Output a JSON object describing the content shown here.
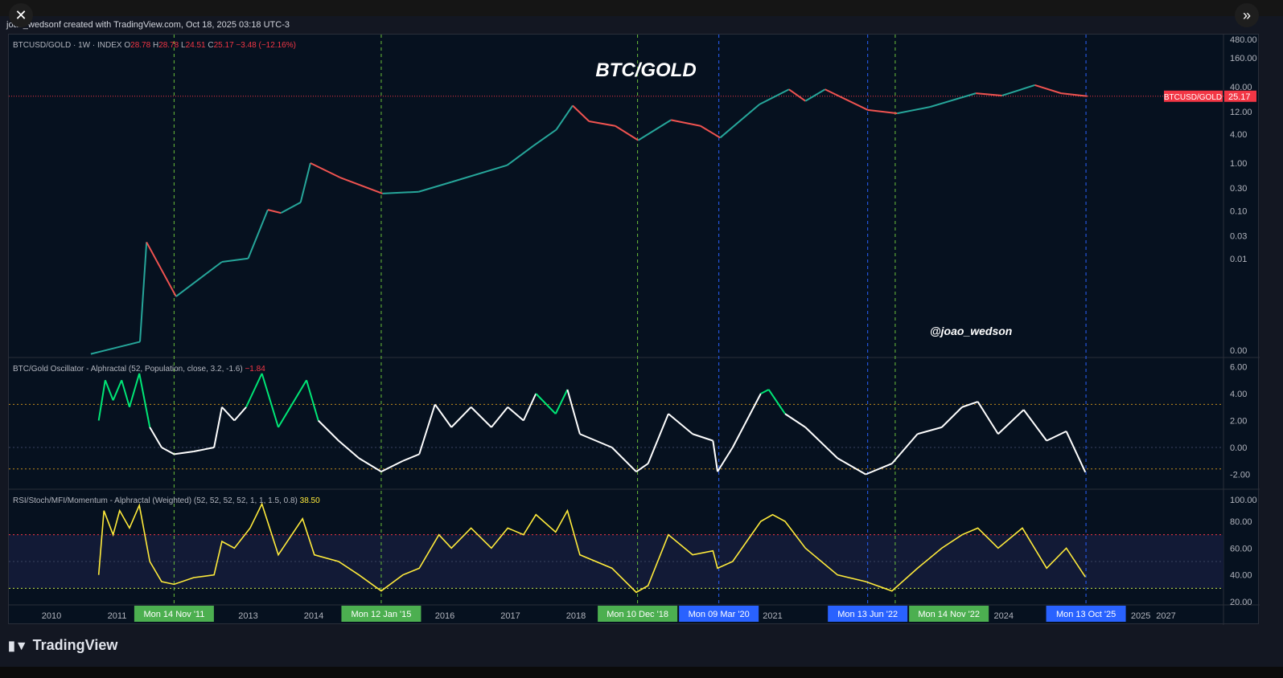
{
  "credit": "joao_wedsonf created with TradingView.com, Oct 18, 2025 03:18 UTC-3",
  "brand": "TradingView",
  "buttons": {
    "close": "close-icon",
    "expand": "chevrons-right-icon"
  },
  "colors": {
    "up": "#26a69a",
    "down": "#ef5350",
    "accent_red": "#f23645",
    "osc_line": "#ffffff",
    "osc_high": "#00e676",
    "osc_low": "#ff3b3b",
    "rsi_line": "#ffeb3b",
    "green_marker": "#4caf50",
    "blue_marker": "#2962ff"
  },
  "legend": {
    "main": {
      "symbol": "BTCUSD/GOLD · 1W · INDEX",
      "o_label": "O",
      "o": "28.78",
      "h_label": "H",
      "h": "28.78",
      "l_label": "L",
      "l": "24.51",
      "c_label": "C",
      "c": "25.17",
      "change": "−3.48 (−12.16%)"
    },
    "osc": {
      "name": "BTC/Gold Oscillator - Alphractal (52, Population, close, 3.2, -1.6)",
      "value": "−1.84"
    },
    "rsi": {
      "name": "RSI/Stoch/MFI/Momentum - Alphractal (Weighted) (52, 52, 52, 52, 1, 1, 1.5, 0.8)",
      "value": "38.50"
    }
  },
  "annotations": {
    "title": "BTC/GOLD",
    "handle": "@joao_wedson"
  },
  "price_label": {
    "name": "BTCUSD/GOLD",
    "value": "25.17"
  },
  "chart_data": [
    {
      "type": "line",
      "name": "BTCUSD/GOLD",
      "scale": "log",
      "y_ticks": [
        "480.00",
        "160.00",
        "40.00",
        "12.00",
        "4.00",
        "1.00",
        "0.30",
        "0.10",
        "0.03",
        "0.01",
        "0.00"
      ],
      "points": [
        [
          2010.6,
          0.0001
        ],
        [
          2011.35,
          0.00018
        ],
        [
          2011.45,
          0.022
        ],
        [
          2011.9,
          0.0016
        ],
        [
          2012.6,
          0.0085
        ],
        [
          2013.0,
          0.01
        ],
        [
          2013.3,
          0.105
        ],
        [
          2013.5,
          0.09
        ],
        [
          2013.8,
          0.15
        ],
        [
          2013.95,
          1.0
        ],
        [
          2014.4,
          0.5
        ],
        [
          2015.05,
          0.23
        ],
        [
          2015.6,
          0.25
        ],
        [
          2016.1,
          0.4
        ],
        [
          2016.95,
          0.9
        ],
        [
          2017.35,
          2.3
        ],
        [
          2017.7,
          5
        ],
        [
          2017.95,
          16
        ],
        [
          2018.2,
          7.5
        ],
        [
          2018.6,
          6
        ],
        [
          2018.95,
          3
        ],
        [
          2019.45,
          8
        ],
        [
          2019.9,
          6
        ],
        [
          2020.2,
          3.4
        ],
        [
          2020.8,
          17
        ],
        [
          2021.25,
          35
        ],
        [
          2021.5,
          20
        ],
        [
          2021.8,
          35
        ],
        [
          2022.45,
          13
        ],
        [
          2022.9,
          11
        ],
        [
          2023.4,
          15
        ],
        [
          2024.1,
          29
        ],
        [
          2024.5,
          26
        ],
        [
          2025.0,
          43
        ],
        [
          2025.4,
          29
        ],
        [
          2025.8,
          25.17
        ]
      ]
    },
    {
      "type": "line",
      "name": "BTC/Gold Oscillator",
      "ylim": [
        -2.8,
        6.6
      ],
      "thresholds": [
        3.2,
        -1.6
      ],
      "y_ticks": [
        "6.00",
        "4.00",
        "2.00",
        "0.00",
        "-2.00"
      ],
      "points": [
        [
          2010.72,
          2.0
        ],
        [
          2010.82,
          5.0
        ],
        [
          2010.94,
          3.5
        ],
        [
          2011.07,
          5.0
        ],
        [
          2011.19,
          3
        ],
        [
          2011.34,
          5.5
        ],
        [
          2011.5,
          1.5
        ],
        [
          2011.68,
          0
        ],
        [
          2011.87,
          -0.5
        ],
        [
          2012.17,
          -0.3
        ],
        [
          2012.48,
          0
        ],
        [
          2012.6,
          3
        ],
        [
          2012.79,
          2
        ],
        [
          2012.97,
          3
        ],
        [
          2013.21,
          5.5
        ],
        [
          2013.46,
          1.5
        ],
        [
          2013.89,
          5
        ],
        [
          2014.07,
          2
        ],
        [
          2014.38,
          0.5
        ],
        [
          2014.69,
          -0.8
        ],
        [
          2015.03,
          -1.8
        ],
        [
          2015.36,
          -1
        ],
        [
          2015.61,
          -0.5
        ],
        [
          2015.85,
          3.2
        ],
        [
          2016.1,
          1.5
        ],
        [
          2016.4,
          3
        ],
        [
          2016.71,
          1.5
        ],
        [
          2016.96,
          3
        ],
        [
          2017.2,
          2
        ],
        [
          2017.39,
          4
        ],
        [
          2017.69,
          2.5
        ],
        [
          2017.87,
          4.3
        ],
        [
          2018.06,
          1
        ],
        [
          2018.55,
          0
        ],
        [
          2018.92,
          -1.8
        ],
        [
          2019.1,
          -1.2
        ],
        [
          2019.41,
          2.5
        ],
        [
          2019.78,
          1
        ],
        [
          2020.09,
          0.5
        ],
        [
          2020.16,
          -1.8
        ],
        [
          2020.39,
          0
        ],
        [
          2020.82,
          4
        ],
        [
          2020.94,
          4.3
        ],
        [
          2021.19,
          2.5
        ],
        [
          2021.5,
          1.5
        ],
        [
          2021.99,
          -0.8
        ],
        [
          2022.42,
          -2.0
        ],
        [
          2022.82,
          -1.2
        ],
        [
          2023.21,
          1
        ],
        [
          2023.58,
          1.5
        ],
        [
          2023.89,
          3
        ],
        [
          2024.13,
          3.4
        ],
        [
          2024.44,
          1
        ],
        [
          2024.83,
          2.8
        ],
        [
          2025.18,
          0.5
        ],
        [
          2025.48,
          1.2
        ],
        [
          2025.77,
          -1.84
        ]
      ]
    },
    {
      "type": "line",
      "name": "RSI/Stoch/MFI/Momentum",
      "ylim": [
        16,
        104
      ],
      "band": [
        30,
        70
      ],
      "y_ticks": [
        "100.00",
        "80.00",
        "60.00",
        "40.00",
        "20.00"
      ],
      "points": [
        [
          2010.72,
          40
        ],
        [
          2010.8,
          88
        ],
        [
          2010.94,
          70
        ],
        [
          2011.04,
          88
        ],
        [
          2011.19,
          75
        ],
        [
          2011.34,
          92
        ],
        [
          2011.5,
          50
        ],
        [
          2011.68,
          35
        ],
        [
          2011.87,
          33
        ],
        [
          2012.17,
          38
        ],
        [
          2012.48,
          40
        ],
        [
          2012.6,
          65
        ],
        [
          2012.79,
          60
        ],
        [
          2013.03,
          75
        ],
        [
          2013.21,
          93
        ],
        [
          2013.46,
          55
        ],
        [
          2013.83,
          82
        ],
        [
          2014.01,
          55
        ],
        [
          2014.38,
          50
        ],
        [
          2014.69,
          40
        ],
        [
          2015.03,
          28
        ],
        [
          2015.36,
          40
        ],
        [
          2015.61,
          45
        ],
        [
          2015.91,
          70
        ],
        [
          2016.1,
          60
        ],
        [
          2016.4,
          75
        ],
        [
          2016.71,
          60
        ],
        [
          2016.96,
          75
        ],
        [
          2017.2,
          70
        ],
        [
          2017.39,
          85
        ],
        [
          2017.69,
          72
        ],
        [
          2017.87,
          88
        ],
        [
          2018.06,
          55
        ],
        [
          2018.55,
          45
        ],
        [
          2018.92,
          27
        ],
        [
          2019.1,
          32
        ],
        [
          2019.41,
          70
        ],
        [
          2019.78,
          55
        ],
        [
          2020.09,
          58
        ],
        [
          2020.16,
          45
        ],
        [
          2020.39,
          50
        ],
        [
          2020.82,
          80
        ],
        [
          2021.0,
          85
        ],
        [
          2021.19,
          80
        ],
        [
          2021.5,
          60
        ],
        [
          2021.99,
          40
        ],
        [
          2022.42,
          35
        ],
        [
          2022.82,
          28
        ],
        [
          2023.21,
          45
        ],
        [
          2023.58,
          60
        ],
        [
          2023.89,
          70
        ],
        [
          2024.13,
          75
        ],
        [
          2024.44,
          60
        ],
        [
          2024.81,
          75
        ],
        [
          2025.18,
          45
        ],
        [
          2025.48,
          60
        ],
        [
          2025.77,
          38.5
        ]
      ]
    }
  ],
  "x_ticks": [
    "2010",
    "2011",
    "2013",
    "2014",
    "2016",
    "2017",
    "2018",
    "2021",
    "2024",
    "2025",
    "2027"
  ],
  "markers": [
    {
      "label": "Mon 14 Nov '11",
      "year": 2011.87,
      "color": "green"
    },
    {
      "label": "Mon 12 Jan '15",
      "year": 2015.03,
      "color": "green"
    },
    {
      "label": "Mon 10 Dec '18",
      "year": 2018.94,
      "color": "green"
    },
    {
      "label": "Mon 09 Mar '20",
      "year": 2020.18,
      "color": "blue"
    },
    {
      "label": "Mon 13 Jun '22",
      "year": 2022.45,
      "color": "blue"
    },
    {
      "label": "Mon 14 Nov '22",
      "year": 2022.87,
      "color": "green"
    },
    {
      "label": "Mon 13 Oct '25",
      "year": 2025.78,
      "color": "blue"
    }
  ]
}
